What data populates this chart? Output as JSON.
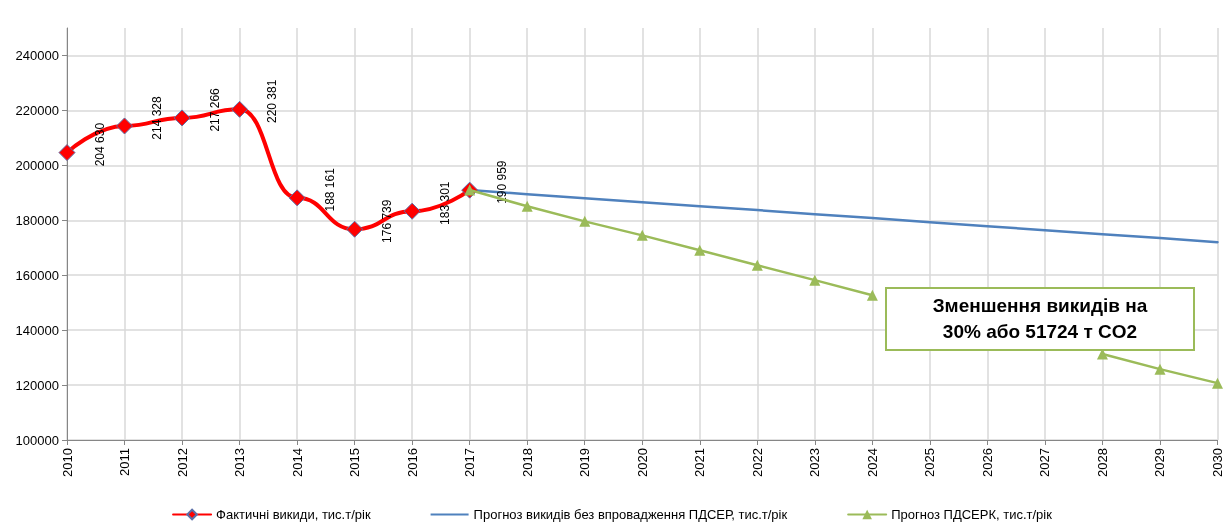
{
  "chart_data": {
    "type": "line",
    "categories": [
      "2010",
      "2011",
      "2012",
      "2013",
      "2014",
      "2015",
      "2016",
      "2017",
      "2018",
      "2019",
      "2020",
      "2021",
      "2022",
      "2023",
      "2024",
      "2025",
      "2026",
      "2027",
      "2028",
      "2029",
      "2030"
    ],
    "series": [
      {
        "name": "Фактичні викиди, тис.т/рік",
        "color": "#ff0000",
        "marker": "diamond",
        "values": [
          204630,
          214328,
          217266,
          220381,
          188161,
          176739,
          183301,
          190959,
          null,
          null,
          null,
          null,
          null,
          null,
          null,
          null,
          null,
          null,
          null,
          null,
          null
        ],
        "value_labels": [
          "204 630",
          "214 328",
          "217 266",
          "220 381",
          "188 161",
          "176 739",
          "183 301",
          "190 959",
          null,
          null,
          null,
          null,
          null,
          null,
          null,
          null,
          null,
          null,
          null,
          null,
          null
        ]
      },
      {
        "name": "Прогноз викидів без впровадження ПДСЕР, тис.т/рік",
        "color": "#4f81bd",
        "marker": "none",
        "values": [
          null,
          null,
          null,
          null,
          null,
          null,
          null,
          191000,
          189500,
          188000,
          186600,
          185100,
          183700,
          182200,
          180800,
          179300,
          177800,
          176400,
          174900,
          173500,
          172000
        ]
      },
      {
        "name": "Прогноз ПДСЕРК, тис.т/рік",
        "color": "#9bbb59",
        "marker": "triangle",
        "values": [
          null,
          null,
          null,
          null,
          null,
          null,
          null,
          191000,
          185100,
          179600,
          174500,
          169100,
          163600,
          158200,
          152700,
          null,
          null,
          null,
          131300,
          125800,
          120700
        ]
      }
    ],
    "ylim": [
      100000,
      250000
    ],
    "yticks": [
      100000,
      120000,
      140000,
      160000,
      180000,
      200000,
      220000,
      240000
    ],
    "grid": true,
    "legend": "bottom",
    "annotations": [
      "Зменшення викидів на\n30% або 51724  т CO2"
    ]
  }
}
